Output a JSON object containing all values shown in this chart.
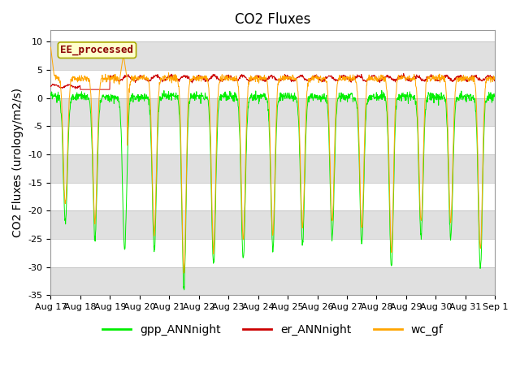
{
  "title": "CO2 Fluxes",
  "ylabel": "CO2 Fluxes (urology/m2/s)",
  "ylim": [
    -35,
    12
  ],
  "yticks": [
    10,
    5,
    0,
    -5,
    -10,
    -15,
    -20,
    -25,
    -30,
    -35
  ],
  "xlabel_dates": [
    "Aug 17",
    "Aug 18",
    "Aug 19",
    "Aug 20",
    "Aug 21",
    "Aug 22",
    "Aug 23",
    "Aug 24",
    "Aug 25",
    "Aug 26",
    "Aug 27",
    "Aug 28",
    "Aug 29",
    "Aug 30",
    "Aug 31",
    "Sep 1"
  ],
  "color_gpp": "#00ee00",
  "color_er": "#cc0000",
  "color_wc": "#ffa500",
  "label_gpp": "gpp_ANNnight",
  "label_er": "er_ANNnight",
  "label_wc": "wc_gf",
  "annotation_text": "EE_processed",
  "annotation_color": "#8b0000",
  "annotation_bg": "#ffffcc",
  "annotation_edge": "#aaaa00",
  "bg_band_color": "#e0e0e0",
  "n_days": 15,
  "points_per_day": 96,
  "title_fontsize": 12,
  "axis_fontsize": 10,
  "tick_fontsize": 8,
  "legend_fontsize": 10
}
